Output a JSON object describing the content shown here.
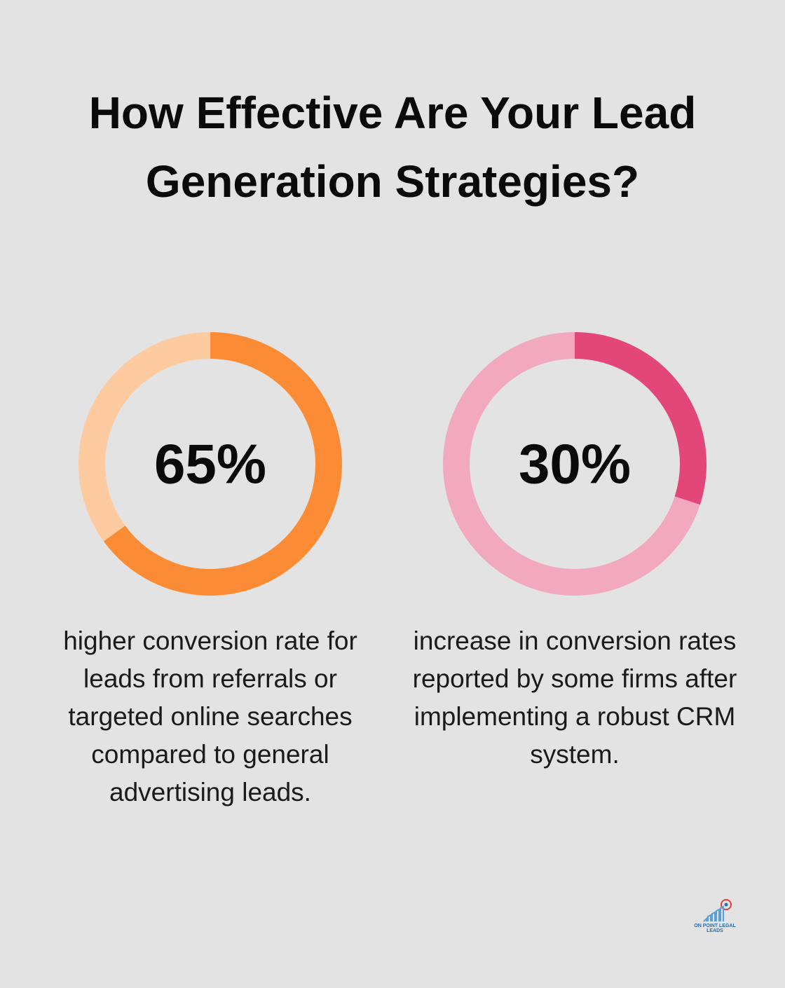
{
  "title": "How Effective Are Your Lead Generation Strategies?",
  "chart_data": [
    {
      "type": "donut",
      "values": [
        65
      ],
      "value_labels": [
        "65%"
      ],
      "ylim": [
        0,
        100
      ],
      "color": "#fb8c35",
      "track_color": "#fecba1",
      "description": "higher conversion rate for leads from referrals or targeted online searches compared to general advertising leads."
    },
    {
      "type": "donut",
      "values": [
        30
      ],
      "value_labels": [
        "30%"
      ],
      "ylim": [
        0,
        100
      ],
      "color": "#e3477a",
      "track_color": "#f2a9bf",
      "description": "increase in conversion rates reported by some firms after implementing a robust CRM system."
    }
  ],
  "logo": {
    "name": "ON POINT LEGAL LEADS"
  }
}
